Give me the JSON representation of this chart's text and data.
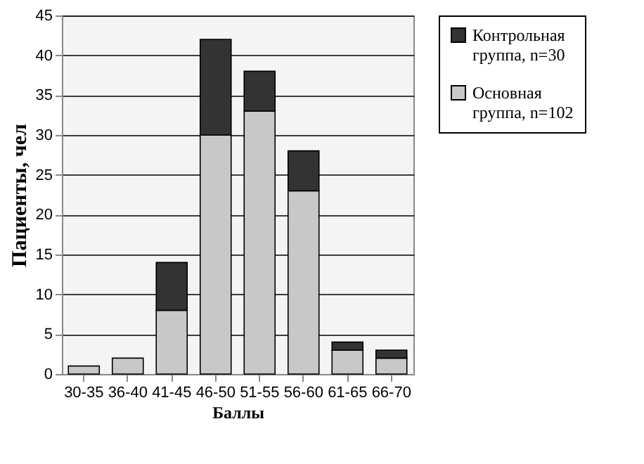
{
  "chart_data": {
    "type": "bar",
    "stacked": true,
    "xlabel": "Баллы",
    "ylabel": "Пациенты, чел",
    "categories": [
      "30-35",
      "36-40",
      "41-45",
      "46-50",
      "51-55",
      "56-60",
      "61-65",
      "66-70"
    ],
    "series": [
      {
        "name": "Основная группа, n=102",
        "color": "#c8c8c8",
        "values": [
          1,
          2,
          8,
          30,
          33,
          23,
          3,
          2
        ]
      },
      {
        "name": "Контрольная группа, n=30",
        "color": "#333333",
        "values": [
          0,
          0,
          6,
          12,
          5,
          5,
          1,
          1
        ]
      }
    ],
    "ylim": [
      0,
      45
    ],
    "yticks": [
      0,
      5,
      10,
      15,
      20,
      25,
      30,
      35,
      40,
      45
    ],
    "grid": "y",
    "legend": "right"
  }
}
